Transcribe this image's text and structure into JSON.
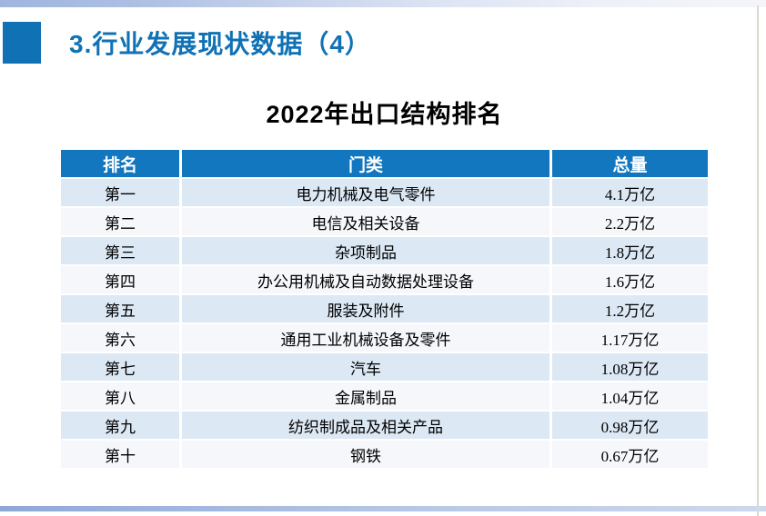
{
  "slide": {
    "title": "3.行业发展现状数据（4）",
    "table_title": "2022年出口结构排名"
  },
  "table": {
    "headers": [
      "排名",
      "门类",
      "总量"
    ],
    "column_names": [
      "rank",
      "category",
      "total"
    ],
    "rows": [
      [
        "第一",
        "电力机械及电气零件",
        "4.1万亿"
      ],
      [
        "第二",
        "电信及相关设备",
        "2.2万亿"
      ],
      [
        "第三",
        "杂项制品",
        "1.8万亿"
      ],
      [
        "第四",
        "办公用机械及自动数据处理设备",
        "1.6万亿"
      ],
      [
        "第五",
        "服装及附件",
        "1.2万亿"
      ],
      [
        "第六",
        "通用工业机械设备及零件",
        "1.17万亿"
      ],
      [
        "第七",
        "汽车",
        "1.08万亿"
      ],
      [
        "第八",
        "金属制品",
        "1.04万亿"
      ],
      [
        "第九",
        "纺织制成品及相关产品",
        "0.98万亿"
      ],
      [
        "第十",
        "钢铁",
        "0.67万亿"
      ]
    ]
  },
  "colors": {
    "accent_blue": "#1072b5",
    "header_blue": "#1277be",
    "row_odd": "#dce8f4",
    "row_even": "#f5f7fb",
    "top_bar_start": "#9fb5dd",
    "bottom_bar_start": "#8ea8d6"
  }
}
